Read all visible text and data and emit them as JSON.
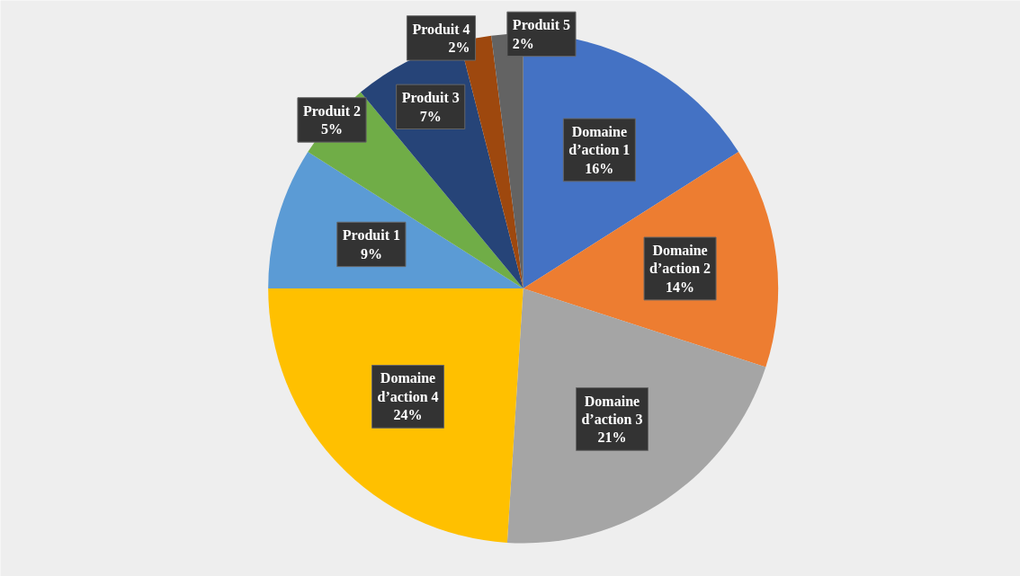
{
  "chart_data": {
    "type": "pie",
    "categories": [
      "Domaine d’action 1",
      "Domaine d’action 2",
      "Domaine d’action 3",
      "Domaine d’action 4",
      "Produit 1",
      "Produit 2",
      "Produit 3",
      "Produit 4",
      "Produit 5"
    ],
    "values": [
      16,
      14,
      21,
      24,
      9,
      5,
      7,
      2,
      2
    ],
    "colors": [
      "#4472c4",
      "#ed7d31",
      "#a5a5a5",
      "#ffc000",
      "#5b9bd5",
      "#70ad47",
      "#264478",
      "#9e480e",
      "#636363"
    ],
    "value_labels": [
      "16%",
      "14%",
      "21%",
      "24%",
      "9%",
      "5%",
      "7%",
      "2%",
      "2%"
    ],
    "legend": false
  }
}
